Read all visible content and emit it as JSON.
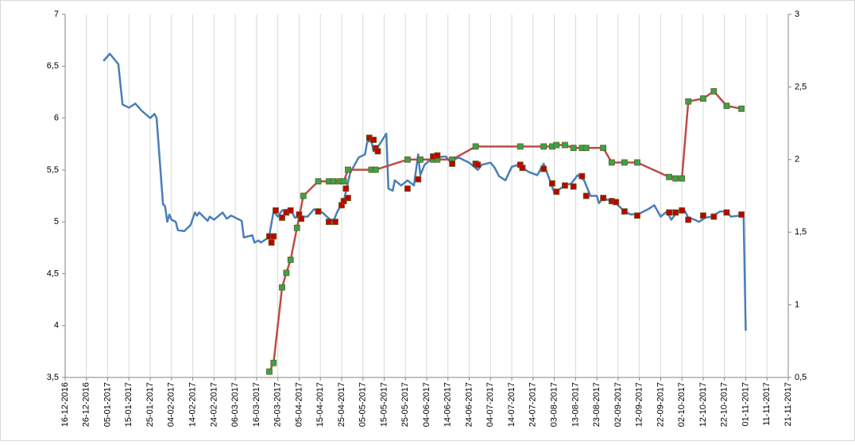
{
  "chart_data": {
    "type": "line",
    "xlim": [
      "16-12-2016",
      "21-11-2017"
    ],
    "xticks": [
      "16-12-2016",
      "26-12-2016",
      "05-01-2017",
      "15-01-2017",
      "25-01-2017",
      "04-02-2017",
      "14-02-2017",
      "24-02-2017",
      "06-03-2017",
      "16-03-2017",
      "26-03-2017",
      "05-04-2017",
      "15-04-2017",
      "25-04-2017",
      "05-05-2017",
      "15-05-2017",
      "25-05-2017",
      "04-06-2017",
      "14-06-2017",
      "24-06-2017",
      "04-07-2017",
      "14-07-2017",
      "24-07-2017",
      "03-08-2017",
      "13-08-2017",
      "23-08-2017",
      "02-09-2017",
      "12-09-2017",
      "22-09-2017",
      "02-10-2017",
      "12-10-2017",
      "22-10-2017",
      "01-11-2017",
      "11-11-2017",
      "21-11-2017"
    ],
    "ylim": [
      3.5,
      7
    ],
    "yticks": [
      {
        "value": 3.5,
        "label": "3,5"
      },
      4,
      {
        "value": 4.5,
        "label": "4,5"
      },
      5,
      {
        "value": 5.5,
        "label": "5,5"
      },
      6,
      {
        "value": 6.5,
        "label": "6,5"
      },
      7
    ],
    "y2lim": [
      0.5,
      3
    ],
    "y2ticks": [
      {
        "value": 0.5,
        "label": "0,5"
      },
      1,
      {
        "value": 1.5,
        "label": "1,5"
      },
      2,
      {
        "value": 2.5,
        "label": "2,5"
      },
      3
    ],
    "grid": "x",
    "series": [
      {
        "style": "line",
        "color": "#4a7ebb",
        "axis": "y",
        "x": [
          "03-01-2017",
          "06-01-2017",
          "10-01-2017",
          "11-01-2017",
          "12-01-2017",
          "15-01-2017",
          "18-01-2017",
          "21-01-2017",
          "25-01-2017",
          "27-01-2017",
          "28-01-2017",
          "31-01-2017",
          "01-02-2017",
          "02-02-2017",
          "03-02-2017",
          "04-02-2017",
          "06-02-2017",
          "07-02-2017",
          "10-02-2017",
          "13-02-2017",
          "15-02-2017",
          "16-02-2017",
          "17-02-2017",
          "21-02-2017",
          "22-02-2017",
          "24-02-2017",
          "28-02-2017",
          "02-03-2017",
          "04-03-2017",
          "07-03-2017",
          "09-03-2017",
          "10-03-2017",
          "14-03-2017",
          "15-03-2017",
          "17-03-2017",
          "18-03-2017",
          "21-03-2017",
          "22-03-2017",
          "24-03-2017",
          "26-03-2017",
          "28-03-2017",
          "01-04-2017",
          "03-04-2017",
          "06-04-2017",
          "09-04-2017",
          "12-04-2017",
          "16-04-2017",
          "18-04-2017",
          "21-04-2017",
          "23-04-2017",
          "26-04-2017",
          "29-04-2017",
          "03-05-2017",
          "06-05-2017",
          "07-05-2017",
          "09-05-2017",
          "10-05-2017",
          "12-05-2017",
          "16-05-2017",
          "17-05-2017",
          "19-05-2017",
          "20-05-2017",
          "23-05-2017",
          "26-05-2017",
          "29-05-2017",
          "31-05-2017",
          "01-06-2017",
          "03-06-2017",
          "07-06-2017",
          "13-06-2017",
          "15-06-2017",
          "19-06-2017",
          "24-06-2017",
          "28-06-2017",
          "30-06-2017",
          "04-07-2017",
          "06-07-2017",
          "08-07-2017",
          "11-07-2017",
          "14-07-2017",
          "17-07-2017",
          "22-07-2017",
          "26-07-2017",
          "29-07-2017",
          "31-07-2017",
          "03-08-2017",
          "08-08-2017",
          "11-08-2017",
          "14-08-2017",
          "17-08-2017",
          "20-08-2017",
          "23-08-2017",
          "24-08-2017",
          "26-08-2017",
          "01-09-2017",
          "05-09-2017",
          "08-09-2017",
          "12-09-2017",
          "16-09-2017",
          "19-09-2017",
          "22-09-2017",
          "25-09-2017",
          "27-09-2017",
          "30-09-2017",
          "03-10-2017",
          "05-10-2017",
          "08-10-2017",
          "10-10-2017",
          "13-10-2017",
          "16-10-2017",
          "20-10-2017",
          "23-10-2017",
          "25-10-2017",
          "29-10-2017",
          "31-10-2017",
          "01-11-2017"
        ],
        "values": [
          6.55,
          6.62,
          6.52,
          6.32,
          6.13,
          6.1,
          6.14,
          6.07,
          6.0,
          6.04,
          6.0,
          5.17,
          5.15,
          5.0,
          5.07,
          5.02,
          5.0,
          4.92,
          4.91,
          4.97,
          5.09,
          5.06,
          5.09,
          5.01,
          5.05,
          5.02,
          5.09,
          5.03,
          5.06,
          5.03,
          5.01,
          4.85,
          4.87,
          4.8,
          4.82,
          4.8,
          4.84,
          4.87,
          5.1,
          5.05,
          5.11,
          5.12,
          5.04,
          5.05,
          5.05,
          5.12,
          5.09,
          5.05,
          5.0,
          5.1,
          5.2,
          5.47,
          5.62,
          5.65,
          5.77,
          5.78,
          5.68,
          5.72,
          5.85,
          5.32,
          5.3,
          5.4,
          5.35,
          5.4,
          5.35,
          5.65,
          5.45,
          5.55,
          5.62,
          5.63,
          5.58,
          5.62,
          5.57,
          5.5,
          5.55,
          5.57,
          5.52,
          5.44,
          5.4,
          5.53,
          5.55,
          5.48,
          5.45,
          5.56,
          5.45,
          5.28,
          5.35,
          5.37,
          5.45,
          5.4,
          5.25,
          5.25,
          5.18,
          5.23,
          5.18,
          5.1,
          5.07,
          5.08,
          5.12,
          5.16,
          5.05,
          5.1,
          5.02,
          5.1,
          5.12,
          5.04,
          5.02,
          5.0,
          5.04,
          5.05,
          5.1,
          5.1,
          5.05,
          5.06,
          5.06,
          3.95
        ]
      },
      {
        "style": "line-markers",
        "color": "#be4b48",
        "marker_color": "#3aa34a",
        "axis": "y2",
        "x": [
          "22-03-2017",
          "24-03-2017",
          "28-03-2017",
          "30-03-2017",
          "01-04-2017",
          "04-04-2017",
          "07-04-2017",
          "14-04-2017",
          "19-04-2017",
          "21-04-2017",
          "24-04-2017",
          "26-04-2017",
          "28-04-2017",
          "09-05-2017",
          "11-05-2017",
          "26-05-2017",
          "01-06-2017",
          "07-06-2017",
          "09-06-2017",
          "16-06-2017",
          "27-06-2017",
          "18-07-2017",
          "29-07-2017",
          "02-08-2017",
          "04-08-2017",
          "08-08-2017",
          "12-08-2017",
          "16-08-2017",
          "18-08-2017",
          "26-08-2017",
          "30-08-2017",
          "05-09-2017",
          "11-09-2017",
          "26-09-2017",
          "29-09-2017",
          "02-10-2017",
          "05-10-2017",
          "12-10-2017",
          "17-10-2017",
          "23-10-2017",
          "30-10-2017"
        ],
        "values": [
          0.54,
          0.6,
          1.12,
          1.22,
          1.31,
          1.53,
          1.75,
          1.85,
          1.85,
          1.85,
          1.85,
          1.85,
          1.93,
          1.93,
          1.93,
          2.0,
          2.0,
          2.0,
          2.0,
          2.0,
          2.09,
          2.09,
          2.09,
          2.09,
          2.1,
          2.1,
          2.08,
          2.08,
          2.08,
          2.08,
          1.98,
          1.98,
          1.98,
          1.88,
          1.87,
          1.87,
          2.4,
          2.42,
          2.47,
          2.37,
          2.35
        ]
      },
      {
        "style": "markers",
        "marker_color": "#c00000",
        "axis": "y",
        "x": [
          "22-03-2017",
          "23-03-2017",
          "24-03-2017",
          "25-03-2017",
          "28-03-2017",
          "30-03-2017",
          "01-04-2017",
          "05-04-2017",
          "06-04-2017",
          "14-04-2017",
          "19-04-2017",
          "22-04-2017",
          "25-04-2017",
          "26-04-2017",
          "27-04-2017",
          "28-04-2017",
          "08-05-2017",
          "10-05-2017",
          "11-05-2017",
          "12-05-2017",
          "26-05-2017",
          "31-05-2017",
          "07-06-2017",
          "09-06-2017",
          "16-06-2017",
          "27-06-2017",
          "28-06-2017",
          "18-07-2017",
          "19-07-2017",
          "29-07-2017",
          "02-08-2017",
          "04-08-2017",
          "08-08-2017",
          "12-08-2017",
          "16-08-2017",
          "18-08-2017",
          "26-08-2017",
          "30-08-2017",
          "01-09-2017",
          "05-09-2017",
          "11-09-2017",
          "26-09-2017",
          "29-09-2017",
          "02-10-2017",
          "05-10-2017",
          "12-10-2017",
          "17-10-2017",
          "23-10-2017",
          "30-10-2017"
        ],
        "values": [
          4.86,
          4.8,
          4.86,
          5.11,
          5.04,
          5.09,
          5.11,
          5.07,
          5.03,
          5.1,
          5.0,
          5.0,
          5.16,
          5.2,
          5.32,
          5.23,
          5.81,
          5.79,
          5.71,
          5.68,
          5.32,
          5.41,
          5.63,
          5.64,
          5.56,
          5.56,
          5.55,
          5.55,
          5.52,
          5.51,
          5.37,
          5.29,
          5.35,
          5.34,
          5.44,
          5.25,
          5.23,
          5.2,
          5.19,
          5.1,
          5.06,
          5.09,
          5.09,
          5.11,
          5.02,
          5.06,
          5.05,
          5.09,
          5.07
        ]
      }
    ]
  }
}
